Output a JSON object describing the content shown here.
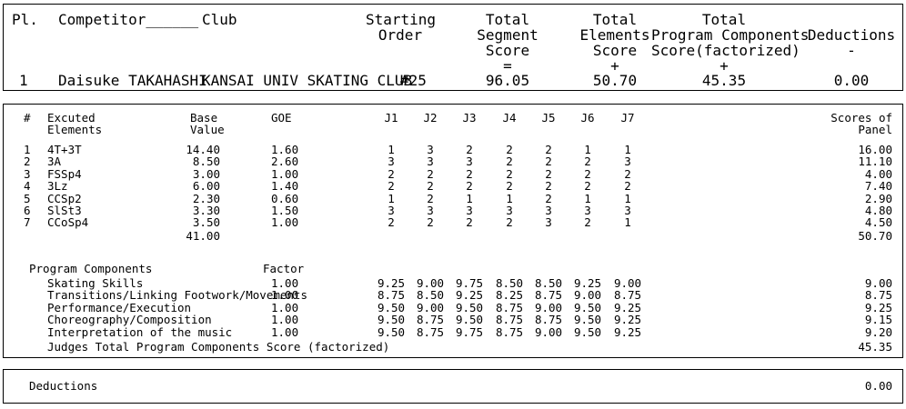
{
  "summary": {
    "headers": {
      "pl": "Pl.",
      "competitor": "Competitor______",
      "club": "Club",
      "starting_order": [
        "Starting",
        "Order"
      ],
      "tss": [
        "Total",
        "Segment",
        "Score",
        "="
      ],
      "tes": [
        "Total",
        "Elements",
        "Score",
        "+"
      ],
      "pcs": [
        "Total",
        "Program Components",
        "Score(factorized)",
        "+"
      ],
      "ded": [
        "Deductions",
        "-"
      ]
    },
    "row": {
      "pl": "1",
      "competitor": "Daisuke TAKAHASHI",
      "club": "KANSAI UNIV SKATING CLUB",
      "starting_order": "#25",
      "tss": "96.05",
      "tes": "50.70",
      "pcs": "45.35",
      "ded": "0.00"
    }
  },
  "elements": {
    "headers": {
      "num": "#",
      "excuted": [
        "Excuted",
        "Elements"
      ],
      "base": [
        "Base",
        "Value"
      ],
      "goe": "GOE",
      "judges": [
        "J1",
        "J2",
        "J3",
        "J4",
        "J5",
        "J6",
        "J7"
      ],
      "panel": [
        "Scores of",
        "Panel"
      ]
    },
    "rows": [
      {
        "num": "1",
        "element": "4T+3T",
        "base": "14.40",
        "goe": "1.60",
        "judges": [
          "1",
          "3",
          "2",
          "2",
          "2",
          "1",
          "1"
        ],
        "panel": "16.00"
      },
      {
        "num": "2",
        "element": "3A",
        "base": "8.50",
        "goe": "2.60",
        "judges": [
          "3",
          "3",
          "3",
          "2",
          "2",
          "2",
          "3"
        ],
        "panel": "11.10"
      },
      {
        "num": "3",
        "element": "FSSp4",
        "base": "3.00",
        "goe": "1.00",
        "judges": [
          "2",
          "2",
          "2",
          "2",
          "2",
          "2",
          "2"
        ],
        "panel": "4.00"
      },
      {
        "num": "4",
        "element": "3Lz",
        "base": "6.00",
        "goe": "1.40",
        "judges": [
          "2",
          "2",
          "2",
          "2",
          "2",
          "2",
          "2"
        ],
        "panel": "7.40"
      },
      {
        "num": "5",
        "element": "CCSp2",
        "base": "2.30",
        "goe": "0.60",
        "judges": [
          "1",
          "2",
          "1",
          "1",
          "2",
          "1",
          "1"
        ],
        "panel": "2.90"
      },
      {
        "num": "6",
        "element": "SlSt3",
        "base": "3.30",
        "goe": "1.50",
        "judges": [
          "3",
          "3",
          "3",
          "3",
          "3",
          "3",
          "3"
        ],
        "panel": "4.80"
      },
      {
        "num": "7",
        "element": "CCoSp4",
        "base": "3.50",
        "goe": "1.00",
        "judges": [
          "2",
          "2",
          "2",
          "2",
          "3",
          "2",
          "1"
        ],
        "panel": "4.50"
      }
    ],
    "total_base": "41.00",
    "total_panel": "50.70"
  },
  "components": {
    "title": "Program Components",
    "factor_label": "Factor",
    "rows": [
      {
        "name": "Skating Skills",
        "factor": "1.00",
        "judges": [
          "9.25",
          "9.00",
          "9.75",
          "8.50",
          "8.50",
          "9.25",
          "9.00"
        ],
        "panel": "9.00"
      },
      {
        "name": "Transitions/Linking Footwork/Movements",
        "factor": "1.00",
        "judges": [
          "8.75",
          "8.50",
          "9.25",
          "8.25",
          "8.75",
          "9.00",
          "8.75"
        ],
        "panel": "8.75"
      },
      {
        "name": "Performance/Execution",
        "factor": "1.00",
        "judges": [
          "9.50",
          "9.00",
          "9.50",
          "8.75",
          "9.00",
          "9.50",
          "9.25"
        ],
        "panel": "9.25"
      },
      {
        "name": "Choreography/Composition",
        "factor": "1.00",
        "judges": [
          "9.50",
          "8.75",
          "9.50",
          "8.75",
          "8.75",
          "9.50",
          "9.25"
        ],
        "panel": "9.15"
      },
      {
        "name": "Interpretation of the music",
        "factor": "1.00",
        "judges": [
          "9.50",
          "8.75",
          "9.75",
          "8.75",
          "9.00",
          "9.50",
          "9.25"
        ],
        "panel": "9.20"
      }
    ],
    "total_label": "Judges Total Program Components Score (factorized)",
    "total": "45.35"
  },
  "deductions": {
    "label": "Deductions",
    "value": "0.00"
  }
}
